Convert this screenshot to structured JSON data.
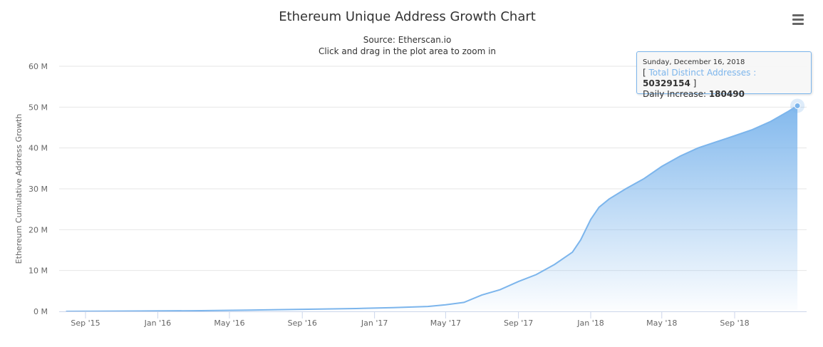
{
  "chart_data": {
    "type": "area",
    "title": "Ethereum Unique Address Growth Chart",
    "subtitle_lines": [
      "Source: Etherscan.io",
      "Click and drag in the plot area to zoom in"
    ],
    "xlabel": "",
    "ylabel": "Ethereum Cumulative Address Growth",
    "ylim": [
      0,
      60000000
    ],
    "y_ticks": [
      "0 M",
      "10 M",
      "20 M",
      "30 M",
      "40 M",
      "50 M",
      "60 M"
    ],
    "x_ticks": [
      "Sep '15",
      "Jan '16",
      "May '16",
      "Sep '16",
      "Jan '17",
      "May '17",
      "Sep '17",
      "Jan '18",
      "May '18",
      "Sep '18"
    ],
    "x_tick_dates": [
      "2015-09-01",
      "2016-01-01",
      "2016-05-01",
      "2016-09-01",
      "2017-01-01",
      "2017-05-01",
      "2017-09-01",
      "2018-01-01",
      "2018-05-01",
      "2018-09-01"
    ],
    "grid": true,
    "legend": "none",
    "colors": {
      "line": "#7cb5ec",
      "fill_top": "#7cb5ec",
      "fill_bottom": "#ffffff",
      "grid": "#e6e6e6"
    },
    "series": [
      {
        "name": "Total Distinct Addresses",
        "x": [
          "2015-07-30",
          "2015-09-01",
          "2015-12-01",
          "2016-03-01",
          "2016-06-01",
          "2016-09-01",
          "2016-12-01",
          "2017-02-01",
          "2017-04-01",
          "2017-05-01",
          "2017-06-01",
          "2017-07-01",
          "2017-08-01",
          "2017-09-01",
          "2017-10-01",
          "2017-11-01",
          "2017-12-01",
          "2017-12-15",
          "2018-01-01",
          "2018-01-15",
          "2018-02-01",
          "2018-03-01",
          "2018-04-01",
          "2018-05-01",
          "2018-06-01",
          "2018-07-01",
          "2018-08-01",
          "2018-09-01",
          "2018-10-01",
          "2018-11-01",
          "2018-12-01",
          "2018-12-16"
        ],
        "values": [
          0,
          20000,
          80000,
          150000,
          300000,
          500000,
          700000,
          900000,
          1200000,
          1600000,
          2200000,
          4000000,
          5300000,
          7300000,
          9000000,
          11500000,
          14500000,
          17500000,
          22500000,
          25500000,
          27500000,
          30000000,
          32500000,
          35500000,
          38000000,
          40000000,
          41500000,
          43000000,
          44500000,
          46500000,
          49000000,
          50329154
        ]
      }
    ],
    "tooltip": {
      "date": "Sunday, December 16, 2018",
      "open_bracket": "[",
      "series_label": "Total Distinct Addresses",
      "separator": " : ",
      "series_value": "50329154",
      "close_bracket": "]",
      "daily_label": "Daily Increase: ",
      "daily_value": "180490",
      "point_date": "2018-12-16",
      "point_value": 50329154
    }
  }
}
